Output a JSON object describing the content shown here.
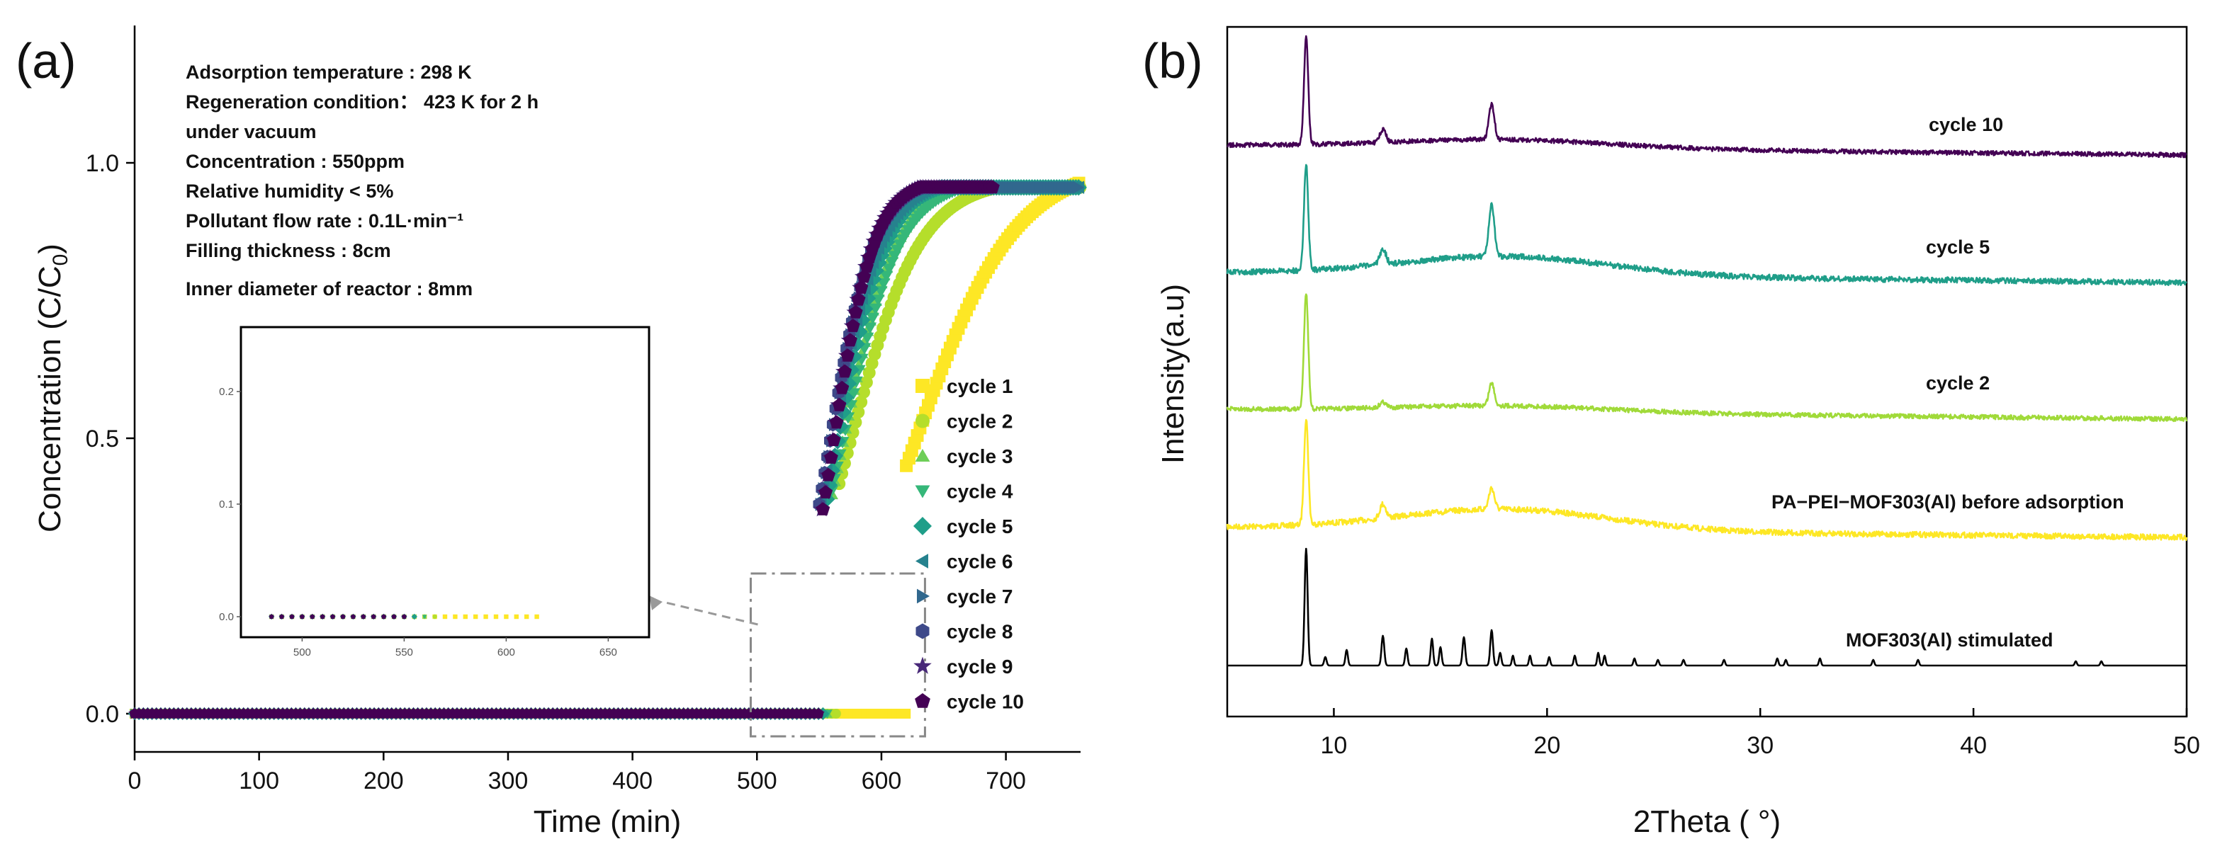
{
  "figure": {
    "panel_a_label": "(a)",
    "panel_b_label": "(b)"
  },
  "conditions": [
    "Adsorption temperature : 298 K",
    "Regeneration condition： 423 K for 2 h",
    "under vacuum",
    "Concentration : 550ppm",
    "Relative humidity  < 5%",
    "Pollutant flow rate  : 0.1L·min⁻¹",
    "Filling thickness  : 8cm",
    "Inner diameter of reactor  : 8mm"
  ],
  "colors": {
    "axis": "#000000",
    "inset_arrow": "#999999",
    "zoom_box": "#888888"
  },
  "chart_data": [
    {
      "type": "scatter",
      "title": "",
      "xlabel": "Time (min)",
      "ylabel_main": "Concentration (C/C",
      "ylabel_sub": "0",
      "ylabel_end": ")",
      "xlim": [
        0,
        760
      ],
      "ylim": [
        -0.02,
        1.2
      ],
      "xticks": [
        0,
        100,
        200,
        300,
        400,
        500,
        600,
        700
      ],
      "xtick_labels": [
        "0",
        "100",
        "200",
        "300",
        "400",
        "500",
        "600",
        "700"
      ],
      "yticks": [
        0.0,
        0.5,
        1.0
      ],
      "ytick_labels": [
        "0.0",
        "0.5",
        "1.0"
      ],
      "legend_position": "right",
      "zoom_box": {
        "x": [
          495,
          635
        ],
        "y": [
          -0.02,
          0.25
        ]
      },
      "series": [
        {
          "name": "cycle 1",
          "marker": "square",
          "color": "#fde725",
          "breakthrough": 620,
          "rise": 0.025,
          "start": 0.0
        },
        {
          "name": "cycle 2",
          "marker": "circle",
          "color": "#b5de2b",
          "breakthrough": 566,
          "rise": 0.035,
          "start": 0.0
        },
        {
          "name": "cycle 3",
          "marker": "triangle-up",
          "color": "#6ece58",
          "breakthrough": 560,
          "rise": 0.045,
          "start": 0.0
        },
        {
          "name": "cycle 4",
          "marker": "triangle-down",
          "color": "#35b779",
          "breakthrough": 560,
          "rise": 0.042,
          "start": 0.0
        },
        {
          "name": "cycle 5",
          "marker": "diamond",
          "color": "#1f9e89",
          "breakthrough": 556,
          "rise": 0.05,
          "start": 0.0
        },
        {
          "name": "cycle 6",
          "marker": "triangle-left",
          "color": "#26828e",
          "breakthrough": 552,
          "rise": 0.05,
          "start": 0.0
        },
        {
          "name": "cycle 7",
          "marker": "triangle-right",
          "color": "#31688e",
          "breakthrough": 551,
          "rise": 0.055,
          "start": 0.0
        },
        {
          "name": "cycle 8",
          "marker": "hexagon",
          "color": "#3e4989",
          "breakthrough": 550,
          "rise": 0.055,
          "start": 0.0
        },
        {
          "name": "cycle 9",
          "marker": "star",
          "color": "#482878",
          "breakthrough": 552,
          "rise": 0.06,
          "start": 0.0
        },
        {
          "name": "cycle 10",
          "marker": "pentagon",
          "color": "#440154",
          "breakthrough": 553,
          "rise": 0.06,
          "start": 0.0
        }
      ],
      "inset": {
        "xlim": [
          470,
          670
        ],
        "ylim": [
          -0.03,
          0.255
        ],
        "xticks": [
          500,
          550,
          600,
          650
        ],
        "xtick_labels": [
          "500",
          "550",
          "600",
          "650"
        ],
        "yticks": [
          0.0,
          0.1,
          0.2
        ],
        "ytick_labels": [
          "0.0",
          "0.1",
          "0.2"
        ]
      }
    },
    {
      "type": "line",
      "title": "",
      "xlabel": "2Theta ( °)",
      "ylabel": "Intensity(a.u)",
      "xlim": [
        5,
        50
      ],
      "xticks": [
        10,
        20,
        30,
        40,
        50
      ],
      "xtick_labels": [
        "10",
        "20",
        "30",
        "40",
        "50"
      ],
      "series": [
        {
          "name": "MOF303(Al)  stimulated",
          "color": "#000000",
          "baseline": 0.0,
          "noise": 0.0,
          "hump": 0.0
        },
        {
          "name": "PA−PEI−MOF303(Al) before adsorption",
          "color": "#fde725",
          "baseline": 1.9,
          "noise": 1.0,
          "hump": 1.0
        },
        {
          "name": "cycle 2",
          "color": "#a0da39",
          "baseline": 3.6,
          "noise": 0.8,
          "hump": 0.3
        },
        {
          "name": "cycle 5",
          "color": "#1f9e89",
          "baseline": 5.2,
          "noise": 1.0,
          "hump": 0.9
        },
        {
          "name": "cycle 10",
          "color": "#440154",
          "baseline": 7.3,
          "noise": 0.8,
          "hump": 0.4
        }
      ],
      "peaks_2theta": [
        8.7,
        12.3,
        17.4
      ]
    }
  ]
}
